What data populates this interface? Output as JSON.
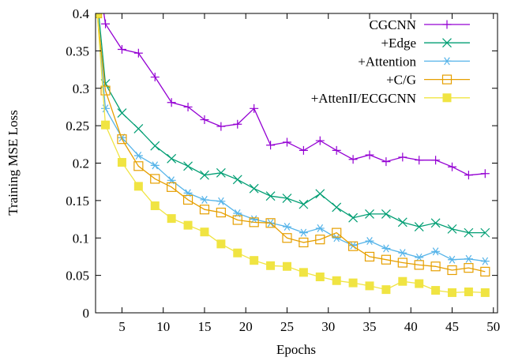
{
  "chart_data": {
    "type": "line",
    "title": "",
    "xlabel": "Epochs",
    "ylabel": "Training MSE Loss",
    "xlim": [
      1.8,
      50.5
    ],
    "ylim": [
      0,
      0.4
    ],
    "xticks": [
      5,
      10,
      15,
      20,
      25,
      30,
      35,
      40,
      45,
      50
    ],
    "xtick_labels": [
      "5",
      "10",
      "15",
      "20",
      "25",
      "30",
      "35",
      "40",
      "45",
      "50"
    ],
    "yticks": [
      0,
      0.05,
      0.1,
      0.15,
      0.2,
      0.25,
      0.3,
      0.35,
      0.4
    ],
    "ytick_labels": [
      "0",
      "0.05",
      "0.1",
      "0.15",
      "0.2",
      "0.25",
      "0.3",
      "0.35",
      "0.4"
    ],
    "grid": false,
    "legend_position": "top-right",
    "series": [
      {
        "name": "CGCNN",
        "color": "#9400d3",
        "marker": "plus",
        "x": [
          2,
          3,
          5,
          7,
          9,
          11,
          13,
          15,
          17,
          19,
          21,
          23,
          25,
          27,
          29,
          31,
          33,
          35,
          37,
          39,
          41,
          43,
          45,
          47,
          49
        ],
        "y": [
          0.46,
          0.386,
          0.352,
          0.347,
          0.315,
          0.281,
          0.275,
          0.258,
          0.249,
          0.252,
          0.273,
          0.224,
          0.228,
          0.217,
          0.23,
          0.217,
          0.205,
          0.211,
          0.202,
          0.208,
          0.204,
          0.204,
          0.195,
          0.184,
          0.186
        ]
      },
      {
        "name": "+Edge",
        "color": "#009e73",
        "marker": "x",
        "x": [
          2,
          3,
          5,
          7,
          9,
          11,
          13,
          15,
          17,
          19,
          21,
          23,
          25,
          27,
          29,
          31,
          33,
          35,
          37,
          39,
          41,
          43,
          45,
          47,
          49
        ],
        "y": [
          0.42,
          0.306,
          0.267,
          0.246,
          0.223,
          0.206,
          0.196,
          0.184,
          0.187,
          0.178,
          0.166,
          0.156,
          0.153,
          0.145,
          0.159,
          0.141,
          0.127,
          0.132,
          0.132,
          0.121,
          0.115,
          0.12,
          0.112,
          0.107,
          0.107
        ]
      },
      {
        "name": "+Attention",
        "color": "#56b4e9",
        "marker": "asterisk",
        "x": [
          2,
          3,
          5,
          7,
          9,
          11,
          13,
          15,
          17,
          19,
          21,
          23,
          25,
          27,
          29,
          31,
          33,
          35,
          37,
          39,
          41,
          43,
          45,
          47,
          49
        ],
        "y": [
          0.4,
          0.273,
          0.234,
          0.21,
          0.197,
          0.177,
          0.16,
          0.151,
          0.149,
          0.133,
          0.125,
          0.12,
          0.115,
          0.107,
          0.113,
          0.1,
          0.09,
          0.096,
          0.086,
          0.08,
          0.074,
          0.082,
          0.071,
          0.072,
          0.069
        ]
      },
      {
        "name": "+C/G",
        "color": "#e69f00",
        "marker": "open-square",
        "x": [
          2,
          3,
          5,
          7,
          9,
          11,
          13,
          15,
          17,
          19,
          21,
          23,
          25,
          27,
          29,
          31,
          33,
          35,
          37,
          39,
          41,
          43,
          45,
          47,
          49
        ],
        "y": [
          0.4,
          0.297,
          0.232,
          0.196,
          0.179,
          0.168,
          0.151,
          0.138,
          0.134,
          0.124,
          0.121,
          0.12,
          0.1,
          0.094,
          0.098,
          0.107,
          0.089,
          0.075,
          0.071,
          0.067,
          0.064,
          0.062,
          0.057,
          0.06,
          0.055
        ]
      },
      {
        "name": "+AttenII/ECGCNN",
        "color": "#f0e442",
        "marker": "filled-square",
        "x": [
          2,
          3,
          5,
          7,
          9,
          11,
          13,
          15,
          17,
          19,
          21,
          23,
          25,
          27,
          29,
          31,
          33,
          35,
          37,
          39,
          41,
          43,
          45,
          47,
          49
        ],
        "y": [
          0.4,
          0.251,
          0.201,
          0.169,
          0.143,
          0.126,
          0.117,
          0.108,
          0.092,
          0.08,
          0.07,
          0.063,
          0.062,
          0.054,
          0.048,
          0.043,
          0.04,
          0.036,
          0.031,
          0.042,
          0.039,
          0.03,
          0.027,
          0.028,
          0.027
        ]
      }
    ]
  }
}
